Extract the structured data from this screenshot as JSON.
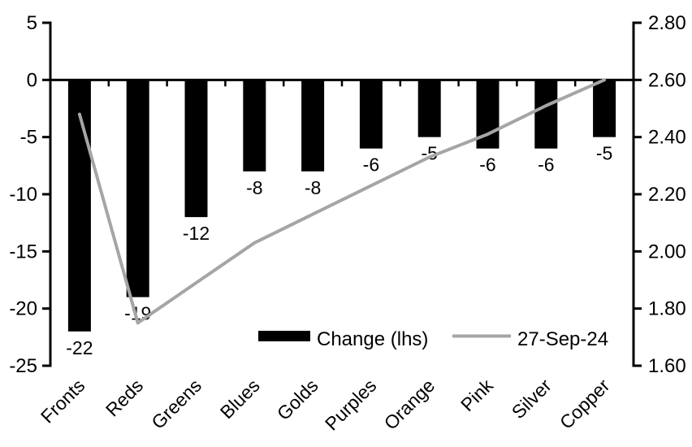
{
  "chart_data": {
    "type": "bar",
    "subtype": "bar-and-line-dual-axis",
    "title": "",
    "xlabel": "",
    "ylabel_left": "",
    "ylabel_right": "",
    "categories": [
      "Fronts",
      "Reds",
      "Greens",
      "Blues",
      "Golds",
      "Purples",
      "Orange",
      "Pink",
      "Silver",
      "Copper"
    ],
    "series": [
      {
        "name": "Change (lhs)",
        "type": "bar",
        "axis": "left",
        "color": "#000000",
        "values": [
          -22,
          -19,
          -12,
          -8,
          -8,
          -6,
          -5,
          -6,
          -6,
          -5
        ],
        "data_labels": [
          "-22",
          "-19",
          "-12",
          "-8",
          "-8",
          "-6",
          "-5",
          "-6",
          "-6",
          "-5"
        ]
      },
      {
        "name": "27-Sep-24",
        "type": "line",
        "axis": "right",
        "color": "#A5A5A5",
        "values": [
          2.48,
          1.75,
          1.89,
          2.03,
          2.13,
          2.23,
          2.33,
          2.41,
          2.51,
          2.6
        ]
      }
    ],
    "left_axis": {
      "min": -25,
      "max": 5,
      "step": 5,
      "tick_labels": [
        "5",
        "0",
        "-5",
        "-10",
        "-15",
        "-20",
        "-25"
      ]
    },
    "right_axis": {
      "min": 1.6,
      "max": 2.8,
      "step": 0.2,
      "tick_labels": [
        "2.80",
        "2.60",
        "2.40",
        "2.20",
        "2.00",
        "1.80",
        "1.60"
      ]
    },
    "grid": false,
    "legend_position": "bottom-inside",
    "legend": [
      {
        "label": "Change (lhs)",
        "swatch": "bar",
        "color": "#000000"
      },
      {
        "label": "27-Sep-24",
        "swatch": "line",
        "color": "#A5A5A5"
      }
    ]
  },
  "colors": {
    "background": "#FFFFFF",
    "axis": "#000000",
    "text": "#000000",
    "bar": "#000000",
    "line": "#A5A5A5"
  }
}
